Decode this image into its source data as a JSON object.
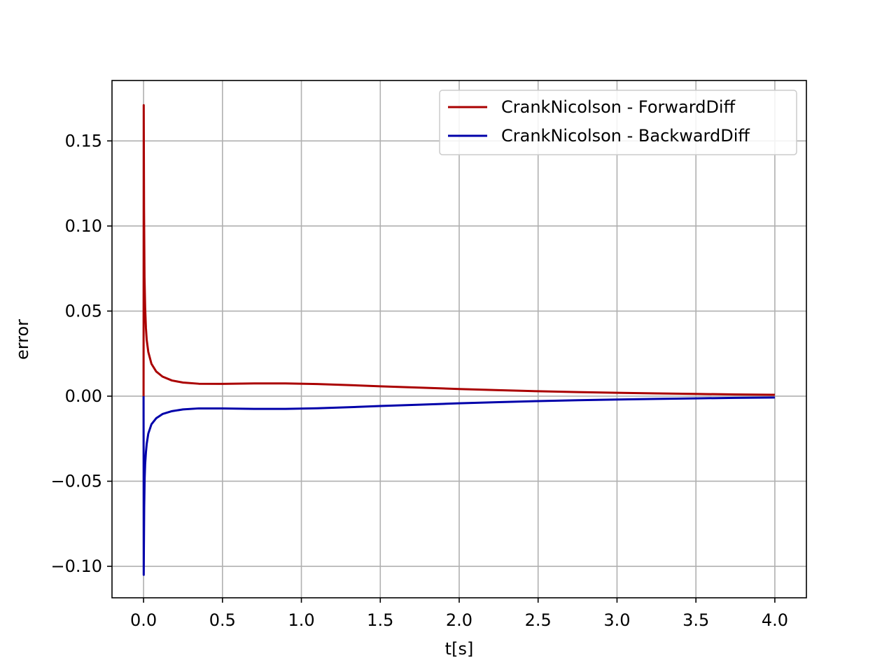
{
  "chart_data": {
    "type": "line",
    "title": "",
    "xlabel": "t[s]",
    "ylabel": "error",
    "xlim": [
      -0.2,
      4.2
    ],
    "ylim": [
      -0.1185,
      0.1855
    ],
    "xticks": [
      0.0,
      0.5,
      1.0,
      1.5,
      2.0,
      2.5,
      3.0,
      3.5,
      4.0
    ],
    "xtick_labels": [
      "0.0",
      "0.5",
      "1.0",
      "1.5",
      "2.0",
      "2.5",
      "3.0",
      "3.5",
      "4.0"
    ],
    "yticks": [
      -0.1,
      -0.05,
      0.0,
      0.05,
      0.1,
      0.15
    ],
    "ytick_labels": [
      "−0.10",
      "−0.05",
      "0.00",
      "0.05",
      "0.10",
      "0.15"
    ],
    "grid": true,
    "legend_position": "top-right",
    "series": [
      {
        "name": "CrankNicolson - ForwardDiff",
        "color": "#aa0000",
        "x": [
          0.0,
          0.001,
          0.003,
          0.006,
          0.01,
          0.015,
          0.02,
          0.03,
          0.05,
          0.08,
          0.12,
          0.18,
          0.25,
          0.35,
          0.5,
          0.7,
          0.9,
          1.1,
          1.3,
          1.5,
          1.75,
          2.0,
          2.25,
          2.5,
          2.75,
          3.0,
          3.25,
          3.5,
          3.75,
          4.0
        ],
        "y": [
          0.0,
          0.171,
          0.11,
          0.07,
          0.052,
          0.04,
          0.033,
          0.026,
          0.019,
          0.0145,
          0.0115,
          0.0092,
          0.008,
          0.0073,
          0.0072,
          0.0075,
          0.0075,
          0.0071,
          0.0065,
          0.0058,
          0.005,
          0.0042,
          0.0035,
          0.0029,
          0.0024,
          0.002,
          0.0016,
          0.0013,
          0.001,
          0.0008
        ]
      },
      {
        "name": "CrankNicolson - BackwardDiff",
        "color": "#0000aa",
        "x": [
          0.0,
          0.001,
          0.002,
          0.004,
          0.007,
          0.01,
          0.015,
          0.02,
          0.03,
          0.05,
          0.08,
          0.12,
          0.18,
          0.25,
          0.35,
          0.5,
          0.7,
          0.9,
          1.1,
          1.3,
          1.5,
          1.75,
          2.0,
          2.25,
          2.5,
          2.75,
          3.0,
          3.25,
          3.5,
          3.75,
          4.0
        ],
        "y": [
          0.0,
          -0.105,
          -0.09,
          -0.065,
          -0.048,
          -0.04,
          -0.033,
          -0.028,
          -0.022,
          -0.0165,
          -0.013,
          -0.0105,
          -0.0088,
          -0.0078,
          -0.0072,
          -0.0072,
          -0.0075,
          -0.0075,
          -0.0071,
          -0.0065,
          -0.0058,
          -0.005,
          -0.0042,
          -0.0035,
          -0.0029,
          -0.0024,
          -0.002,
          -0.0016,
          -0.0013,
          -0.001,
          -0.0008
        ]
      }
    ]
  }
}
